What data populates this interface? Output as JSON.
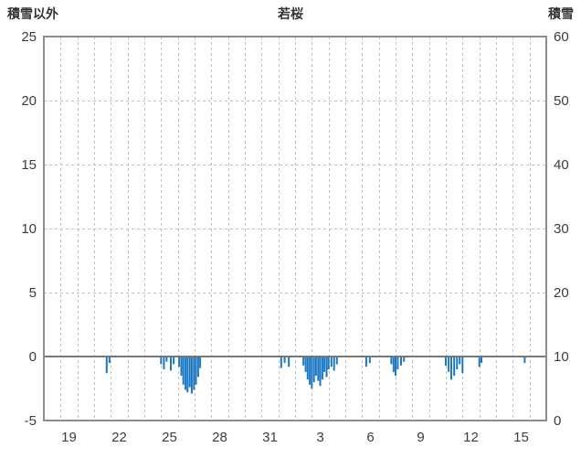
{
  "chart_data": {
    "type": "bar",
    "title": "若桜",
    "left_axis": {
      "label": "積雪以外",
      "min": -5,
      "max": 25,
      "ticks": [
        25,
        20,
        15,
        10,
        5,
        0,
        -5
      ]
    },
    "right_axis": {
      "label": "積雪",
      "min": 0,
      "max": 60,
      "ticks": [
        60,
        50,
        40,
        30,
        20,
        10,
        0
      ]
    },
    "x_axis": {
      "domain_days": 30,
      "tick_positions": [
        1.5,
        4.5,
        7.5,
        10.5,
        13.5,
        16.5,
        19.5,
        22.5,
        25.5,
        28.5
      ],
      "tick_labels": [
        "19",
        "22",
        "25",
        "28",
        "31",
        "3",
        "6",
        "9",
        "12",
        "15"
      ],
      "gridline_step_days": 1
    },
    "grid": {
      "vertical": "dashed-daily",
      "horizontal_dashed_at_left_values": [
        20,
        15,
        10,
        5
      ]
    },
    "zero_line_left_value": 0,
    "series": [
      {
        "name": "積雪以外",
        "color": "#1a78c2",
        "bars": [
          [
            3.75,
            -1.3
          ],
          [
            3.92,
            -0.5
          ],
          [
            7.0,
            -0.6
          ],
          [
            7.17,
            -1.0
          ],
          [
            7.33,
            -0.4
          ],
          [
            7.58,
            -1.1
          ],
          [
            7.75,
            -0.6
          ],
          [
            8.08,
            -0.8
          ],
          [
            8.21,
            -1.5
          ],
          [
            8.33,
            -2.2
          ],
          [
            8.46,
            -2.6
          ],
          [
            8.58,
            -2.8
          ],
          [
            8.71,
            -2.4
          ],
          [
            8.83,
            -2.9
          ],
          [
            8.96,
            -2.6
          ],
          [
            9.08,
            -2.2
          ],
          [
            9.21,
            -1.6
          ],
          [
            9.33,
            -0.9
          ],
          [
            14.17,
            -0.9
          ],
          [
            14.38,
            -0.5
          ],
          [
            14.63,
            -0.8
          ],
          [
            15.5,
            -0.7
          ],
          [
            15.63,
            -1.2
          ],
          [
            15.75,
            -1.8
          ],
          [
            15.88,
            -2.2
          ],
          [
            16.0,
            -2.5
          ],
          [
            16.13,
            -2.0
          ],
          [
            16.25,
            -1.5
          ],
          [
            16.38,
            -1.9
          ],
          [
            16.5,
            -2.3
          ],
          [
            16.63,
            -1.8
          ],
          [
            16.75,
            -1.2
          ],
          [
            16.88,
            -1.6
          ],
          [
            17.0,
            -1.0
          ],
          [
            17.17,
            -0.8
          ],
          [
            17.33,
            -1.1
          ],
          [
            17.5,
            -0.6
          ],
          [
            19.25,
            -0.8
          ],
          [
            19.46,
            -0.5
          ],
          [
            20.75,
            -0.6
          ],
          [
            20.88,
            -1.2
          ],
          [
            21.0,
            -1.5
          ],
          [
            21.13,
            -1.0
          ],
          [
            21.33,
            -0.7
          ],
          [
            21.5,
            -0.4
          ],
          [
            24.0,
            -0.7
          ],
          [
            24.17,
            -1.2
          ],
          [
            24.33,
            -1.8
          ],
          [
            24.5,
            -1.5
          ],
          [
            24.67,
            -1.0
          ],
          [
            24.83,
            -0.6
          ],
          [
            25.0,
            -1.3
          ],
          [
            26.0,
            -0.8
          ],
          [
            26.13,
            -0.5
          ],
          [
            28.71,
            -0.5
          ]
        ]
      }
    ],
    "colors": {
      "bar": "#1a78c2",
      "gridline": "#c0c0c0",
      "frame": "#8c8c8c",
      "zero_line": "#777777",
      "text": "#3c3c3c"
    },
    "legend_position": "none"
  }
}
